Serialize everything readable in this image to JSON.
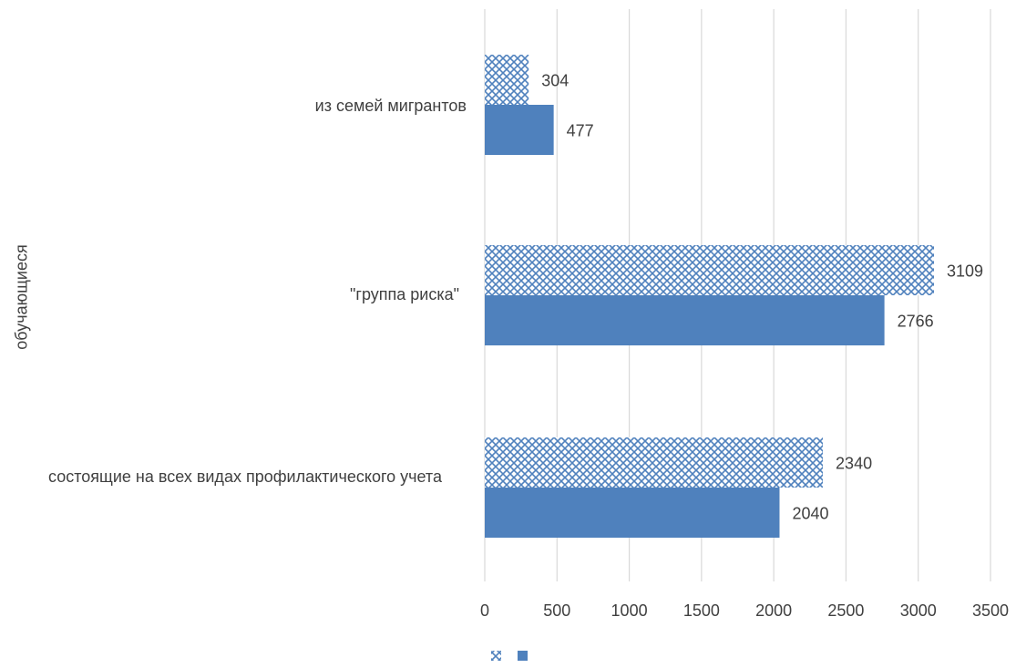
{
  "chart_data": {
    "type": "bar",
    "orientation": "horizontal",
    "categories": [
      "из семей мигрантов",
      "\"группа риска\"",
      "состоящие на всех видах профилактического учета"
    ],
    "series": [
      {
        "values": [
          304,
          3109,
          2340
        ],
        "pattern": "crosshatch",
        "color": "#4F81BD"
      },
      {
        "values": [
          477,
          2766,
          2040
        ],
        "pattern": "solid",
        "color": "#4F81BD"
      }
    ],
    "ylabel": "обучающиеся",
    "xlim": [
      0,
      3500
    ],
    "xticks": [
      0,
      500,
      1000,
      1500,
      2000,
      2500,
      3000,
      3500
    ],
    "grid": "vertical",
    "legend": "bottom",
    "colors": {
      "bar": "#4F81BD",
      "grid": "#d9d9d9",
      "text": "#404040"
    }
  }
}
